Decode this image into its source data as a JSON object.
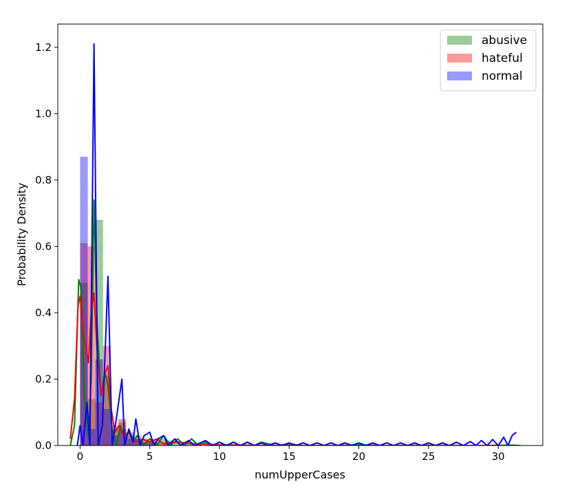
{
  "chart_data": {
    "type": "bar",
    "title": "",
    "xlabel": "numUpperCases",
    "ylabel": "Probability Density",
    "xlim": [
      -1.6,
      33.2
    ],
    "ylim": [
      0,
      1.27
    ],
    "xticks": [
      0,
      5,
      10,
      15,
      20,
      25,
      30
    ],
    "yticks": [
      0.0,
      0.2,
      0.4,
      0.6,
      0.8,
      1.0,
      1.2
    ],
    "xtick_labels": [
      "0",
      "5",
      "10",
      "15",
      "20",
      "25",
      "30"
    ],
    "ytick_labels": [
      "0.0",
      "0.2",
      "0.4",
      "0.6",
      "0.8",
      "1.0",
      "1.2"
    ],
    "grid": false,
    "legend_position": "top-right",
    "series": [
      {
        "name": "abusive",
        "color": "#008000",
        "hist_bins": [
          [
            0,
            0.55,
            0.49
          ],
          [
            0.55,
            1.1,
            0.14
          ],
          [
            1.1,
            1.65,
            0.68
          ],
          [
            1.65,
            2.2,
            0.21
          ],
          [
            2.2,
            2.75,
            0.05
          ],
          [
            2.75,
            3.3,
            0.07
          ],
          [
            3.3,
            3.85,
            0.04
          ],
          [
            3.85,
            4.4,
            0.03
          ],
          [
            4.4,
            4.95,
            0.02
          ],
          [
            4.95,
            5.5,
            0.02
          ],
          [
            5.5,
            6.05,
            0.02
          ],
          [
            6.05,
            6.6,
            0.015
          ],
          [
            6.6,
            7.15,
            0.012
          ],
          [
            7.15,
            7.7,
            0.012
          ],
          [
            7.7,
            8.25,
            0.01
          ]
        ],
        "kde": [
          [
            -0.7,
            0.0
          ],
          [
            -0.4,
            0.06
          ],
          [
            -0.1,
            0.5
          ],
          [
            0.1,
            0.47
          ],
          [
            0.3,
            0.15
          ],
          [
            0.6,
            0.02
          ],
          [
            0.8,
            0.2
          ],
          [
            1.0,
            0.74
          ],
          [
            1.2,
            0.38
          ],
          [
            1.5,
            0.15
          ],
          [
            1.8,
            0.22
          ],
          [
            2.0,
            0.18
          ],
          [
            2.3,
            0.05
          ],
          [
            2.6,
            0.0
          ],
          [
            2.9,
            0.06
          ],
          [
            3.2,
            0.02
          ],
          [
            3.5,
            0.04
          ],
          [
            3.8,
            0.01
          ],
          [
            4.1,
            0.03
          ],
          [
            4.5,
            0.0
          ],
          [
            5.0,
            0.02
          ],
          [
            5.5,
            0.0
          ],
          [
            6.0,
            0.03
          ],
          [
            6.5,
            0.0
          ],
          [
            7.0,
            0.02
          ],
          [
            7.5,
            0.0
          ],
          [
            8.0,
            0.02
          ],
          [
            8.5,
            0.0
          ],
          [
            9.0,
            0.01
          ],
          [
            9.5,
            0.0
          ],
          [
            10.0,
            0.01
          ],
          [
            10.5,
            0.0
          ],
          [
            11.0,
            0.01
          ],
          [
            11.5,
            0.0
          ],
          [
            12.0,
            0.01
          ],
          [
            12.5,
            0.0
          ],
          [
            13.0,
            0.01
          ],
          [
            14.0,
            0.0
          ],
          [
            15.0,
            0.005
          ],
          [
            16.0,
            0.0
          ],
          [
            18.0,
            0.0
          ],
          [
            20.0,
            0.002
          ],
          [
            22.0,
            0.0
          ],
          [
            25.0,
            0.001
          ],
          [
            28.0,
            0.0
          ],
          [
            31.0,
            0.001
          ],
          [
            31.6,
            0.0
          ]
        ]
      },
      {
        "name": "hateful",
        "color": "#ff0000",
        "hist_bins": [
          [
            0,
            0.55,
            0.61
          ],
          [
            0.55,
            1.1,
            0.6
          ],
          [
            1.1,
            1.65,
            0.13
          ],
          [
            1.65,
            2.2,
            0.3
          ],
          [
            2.2,
            2.75,
            0.06
          ],
          [
            2.75,
            3.3,
            0.08
          ],
          [
            3.3,
            3.85,
            0.03
          ],
          [
            3.85,
            4.4,
            0.02
          ],
          [
            4.4,
            4.95,
            0.015
          ],
          [
            4.95,
            5.5,
            0.015
          ],
          [
            5.5,
            6.05,
            0.01
          ],
          [
            6.05,
            6.6,
            0.01
          ]
        ],
        "kde": [
          [
            -0.7,
            0.02
          ],
          [
            -0.4,
            0.14
          ],
          [
            -0.15,
            0.42
          ],
          [
            0.0,
            0.45
          ],
          [
            0.3,
            0.32
          ],
          [
            0.6,
            0.25
          ],
          [
            0.8,
            0.4
          ],
          [
            1.0,
            0.46
          ],
          [
            1.2,
            0.3
          ],
          [
            1.5,
            0.15
          ],
          [
            1.8,
            0.22
          ],
          [
            2.0,
            0.24
          ],
          [
            2.2,
            0.12
          ],
          [
            2.5,
            0.04
          ],
          [
            2.8,
            0.06
          ],
          [
            3.1,
            0.03
          ],
          [
            3.5,
            0.04
          ],
          [
            4.0,
            0.01
          ],
          [
            4.5,
            0.02
          ],
          [
            5.0,
            0.01
          ],
          [
            5.5,
            0.02
          ],
          [
            6.0,
            0.005
          ],
          [
            7.0,
            0.01
          ],
          [
            8.0,
            0.005
          ],
          [
            9.0,
            0.004
          ],
          [
            10.0,
            0.002
          ],
          [
            12.0,
            0.001
          ],
          [
            15.0,
            0.0
          ],
          [
            20.0,
            0.0
          ],
          [
            25.0,
            0.0
          ],
          [
            30.0,
            0.0
          ]
        ]
      },
      {
        "name": "normal",
        "color": "#0000ff",
        "hist_bins": [
          [
            0,
            0.55,
            0.87
          ],
          [
            0.55,
            1.1,
            0.05
          ],
          [
            1.1,
            1.65,
            0.26
          ],
          [
            1.65,
            2.2,
            0.11
          ],
          [
            2.2,
            2.75,
            0.03
          ],
          [
            2.75,
            3.3,
            0.05
          ],
          [
            3.3,
            3.85,
            0.02
          ],
          [
            3.85,
            4.4,
            0.02
          ],
          [
            4.4,
            4.95,
            0.01
          ],
          [
            4.95,
            5.5,
            0.01
          ]
        ],
        "kde": [
          [
            -0.2,
            0.0
          ],
          [
            0.0,
            0.06
          ],
          [
            0.2,
            0.0
          ],
          [
            0.5,
            0.13
          ],
          [
            0.7,
            0.0
          ],
          [
            1.0,
            1.21
          ],
          [
            1.3,
            0.0
          ],
          [
            1.6,
            0.06
          ],
          [
            2.0,
            0.51
          ],
          [
            2.3,
            0.0
          ],
          [
            2.6,
            0.08
          ],
          [
            3.0,
            0.2
          ],
          [
            3.2,
            0.0
          ],
          [
            3.5,
            0.05
          ],
          [
            3.8,
            0.01
          ],
          [
            4.0,
            0.08
          ],
          [
            4.3,
            0.0
          ],
          [
            4.6,
            0.03
          ],
          [
            5.0,
            0.04
          ],
          [
            5.3,
            0.0
          ],
          [
            5.6,
            0.02
          ],
          [
            6.0,
            0.03
          ],
          [
            6.3,
            0.0
          ],
          [
            6.8,
            0.02
          ],
          [
            7.2,
            0.0
          ],
          [
            7.8,
            0.015
          ],
          [
            8.2,
            0.0
          ],
          [
            9.0,
            0.015
          ],
          [
            9.5,
            0.0
          ],
          [
            10.0,
            0.01
          ],
          [
            10.5,
            0.0
          ],
          [
            11.0,
            0.01
          ],
          [
            11.5,
            0.0
          ],
          [
            12.0,
            0.01
          ],
          [
            12.5,
            0.0
          ],
          [
            13.0,
            0.008
          ],
          [
            13.5,
            0.0
          ],
          [
            14.0,
            0.008
          ],
          [
            14.5,
            0.0
          ],
          [
            15.0,
            0.008
          ],
          [
            15.5,
            0.0
          ],
          [
            16.0,
            0.008
          ],
          [
            16.5,
            0.0
          ],
          [
            17.0,
            0.008
          ],
          [
            17.5,
            0.0
          ],
          [
            18.0,
            0.008
          ],
          [
            18.5,
            0.0
          ],
          [
            19.0,
            0.008
          ],
          [
            19.5,
            0.0
          ],
          [
            20.0,
            0.008
          ],
          [
            20.5,
            0.0
          ],
          [
            21.0,
            0.008
          ],
          [
            21.5,
            0.0
          ],
          [
            22.0,
            0.008
          ],
          [
            22.5,
            0.0
          ],
          [
            23.0,
            0.008
          ],
          [
            23.5,
            0.0
          ],
          [
            24.0,
            0.008
          ],
          [
            24.5,
            0.0
          ],
          [
            25.0,
            0.008
          ],
          [
            25.5,
            0.0
          ],
          [
            26.0,
            0.008
          ],
          [
            26.5,
            0.0
          ],
          [
            27.0,
            0.01
          ],
          [
            27.5,
            0.0
          ],
          [
            28.0,
            0.012
          ],
          [
            28.4,
            0.0
          ],
          [
            28.8,
            0.015
          ],
          [
            29.2,
            0.0
          ],
          [
            29.6,
            0.018
          ],
          [
            30.0,
            0.0
          ],
          [
            30.4,
            0.025
          ],
          [
            30.7,
            0.0
          ],
          [
            31.0,
            0.03
          ],
          [
            31.3,
            0.04
          ]
        ]
      }
    ]
  }
}
